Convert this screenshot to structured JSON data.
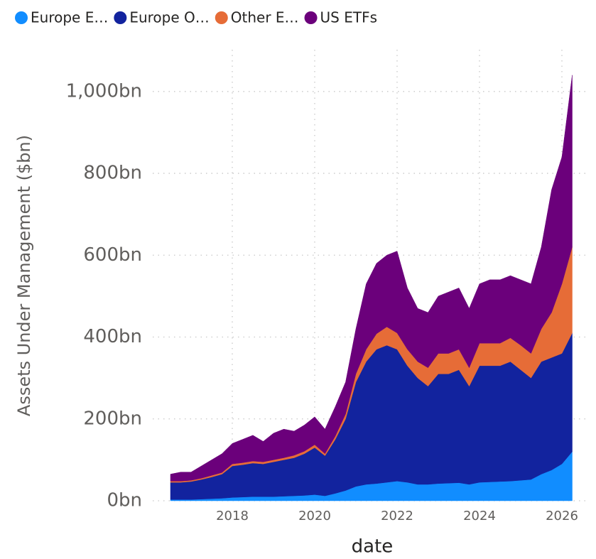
{
  "chart_data": {
    "type": "area",
    "stacked": true,
    "y_label": "Assets Under Management ($bn)",
    "x_label": "date",
    "x": [
      2016.5,
      2016.75,
      2017,
      2017.25,
      2017.5,
      2017.75,
      2018,
      2018.25,
      2018.5,
      2018.75,
      2019,
      2019.25,
      2019.5,
      2019.75,
      2020,
      2020.25,
      2020.5,
      2020.75,
      2021,
      2021.25,
      2021.5,
      2021.75,
      2022,
      2022.25,
      2022.5,
      2022.75,
      2023,
      2023.25,
      2023.5,
      2023.75,
      2024,
      2024.25,
      2024.5,
      2024.75,
      2025,
      2025.25,
      2025.5,
      2025.75,
      2026,
      2026.25
    ],
    "series": [
      {
        "name": "Europe E…",
        "color": "#118dff",
        "values": [
          3,
          3,
          3,
          4,
          5,
          6,
          8,
          9,
          10,
          10,
          10,
          11,
          12,
          13,
          15,
          12,
          18,
          25,
          35,
          40,
          42,
          45,
          48,
          45,
          40,
          40,
          42,
          43,
          44,
          40,
          45,
          46,
          47,
          48,
          50,
          52,
          65,
          75,
          90,
          120
        ]
      },
      {
        "name": "Europe O…",
        "color": "#12239e",
        "values": [
          42,
          42,
          44,
          48,
          53,
          59,
          77,
          79,
          82,
          80,
          85,
          89,
          93,
          102,
          115,
          98,
          132,
          175,
          255,
          300,
          328,
          335,
          322,
          285,
          260,
          240,
          268,
          267,
          276,
          240,
          285,
          284,
          283,
          292,
          270,
          248,
          275,
          275,
          270,
          290
        ]
      },
      {
        "name": "Other E…",
        "color": "#e66c37",
        "values": [
          3,
          3,
          3,
          3,
          4,
          4,
          5,
          5,
          5,
          5,
          5,
          5,
          6,
          6,
          7,
          5,
          8,
          12,
          20,
          30,
          38,
          45,
          40,
          40,
          40,
          45,
          50,
          50,
          50,
          45,
          55,
          55,
          55,
          58,
          60,
          60,
          80,
          110,
          170,
          210
        ]
      },
      {
        "name": "US ETFs",
        "color": "#6b007b",
        "values": [
          17,
          22,
          20,
          30,
          38,
          46,
          50,
          57,
          63,
          50,
          65,
          70,
          59,
          64,
          68,
          60,
          72,
          78,
          110,
          160,
          172,
          175,
          200,
          150,
          130,
          135,
          140,
          150,
          150,
          145,
          145,
          155,
          155,
          152,
          160,
          170,
          200,
          300,
          310,
          420
        ]
      }
    ],
    "xlim": [
      2016.5,
      2026.5
    ],
    "xticks": [
      2018,
      2020,
      2022,
      2024,
      2026
    ],
    "ylim": [
      0,
      1050
    ],
    "yticks": [
      {
        "value": 0,
        "label": "0bn"
      },
      {
        "value": 200,
        "label": "200bn"
      },
      {
        "value": 400,
        "label": "400bn"
      },
      {
        "value": 600,
        "label": "600bn"
      },
      {
        "value": 800,
        "label": "800bn"
      },
      {
        "value": 1000,
        "label": "1,000bn"
      }
    ],
    "grid": true,
    "legend": "top-left"
  }
}
